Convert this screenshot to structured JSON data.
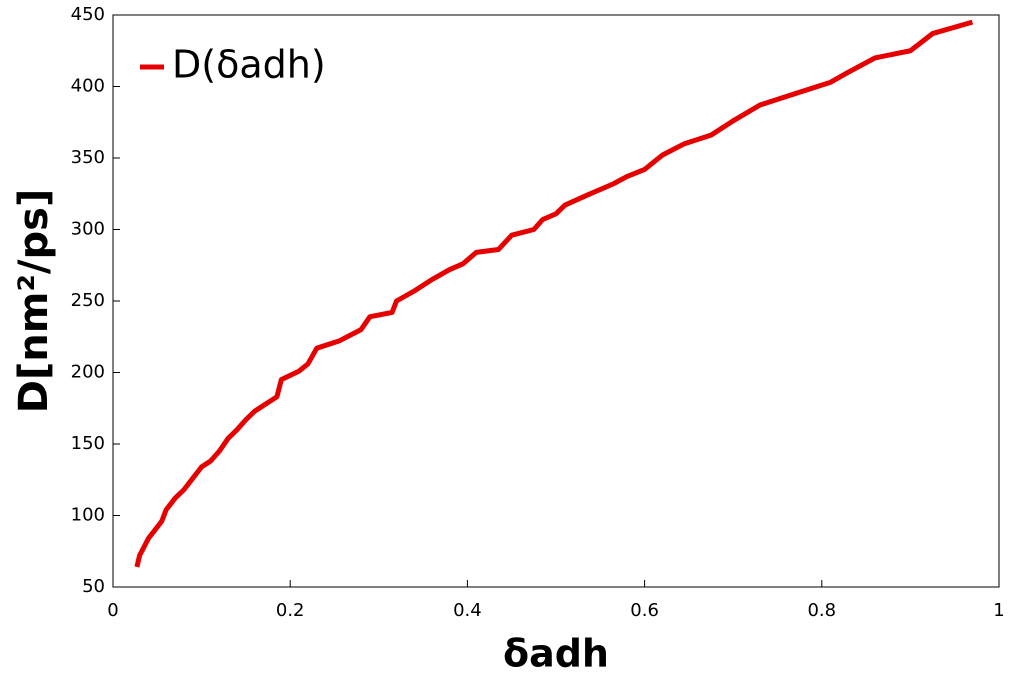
{
  "chart_data": {
    "type": "line",
    "x_label": "δadh",
    "y_label": "D[nm²/ps]",
    "x": [
      0.027,
      0.03,
      0.035,
      0.04,
      0.045,
      0.055,
      0.06,
      0.07,
      0.08,
      0.09,
      0.1,
      0.11,
      0.12,
      0.13,
      0.14,
      0.15,
      0.16,
      0.17,
      0.185,
      0.19,
      0.21,
      0.22,
      0.23,
      0.255,
      0.28,
      0.29,
      0.315,
      0.32,
      0.34,
      0.36,
      0.38,
      0.395,
      0.41,
      0.435,
      0.45,
      0.475,
      0.485,
      0.5,
      0.51,
      0.535,
      0.565,
      0.58,
      0.6,
      0.62,
      0.645,
      0.675,
      0.7,
      0.73,
      0.77,
      0.81,
      0.83,
      0.86,
      0.9,
      0.925,
      0.97
    ],
    "series": [
      {
        "name": "D(δadh)",
        "color": "#e60000",
        "values": [
          64,
          72,
          78,
          84,
          88,
          96,
          104,
          112,
          118,
          126,
          134,
          138,
          145,
          154,
          160,
          167,
          173,
          177,
          183,
          195,
          201,
          206,
          217,
          222,
          230,
          239,
          242,
          250,
          257,
          265,
          272,
          276,
          284,
          286,
          296,
          300,
          307,
          311,
          317,
          324,
          332,
          337,
          342,
          352,
          360,
          366,
          376,
          387,
          395,
          403,
          410,
          420,
          425,
          437,
          445
        ]
      }
    ],
    "xlim": [
      0,
      1
    ],
    "xticks": [
      0,
      0.2,
      0.4,
      0.6,
      0.8,
      1
    ],
    "ylim": [
      50,
      450
    ],
    "yticks": [
      50,
      100,
      150,
      200,
      250,
      300,
      350,
      400,
      450
    ],
    "legend": "upper-left"
  }
}
